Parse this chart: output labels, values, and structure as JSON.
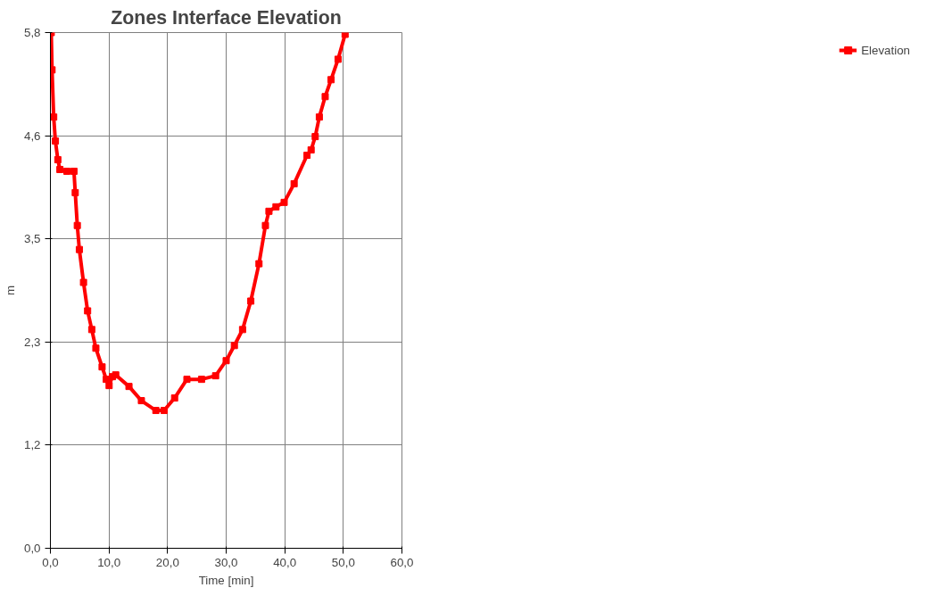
{
  "chart_data": {
    "type": "line",
    "title": "Zones Interface Elevation",
    "xlabel": "Time [min]",
    "ylabel": "m",
    "series": [
      {
        "name": "Elevation",
        "color": "#ff0000",
        "x": [
          0.14,
          0.28,
          0.56,
          0.85,
          1.27,
          1.62,
          2.82,
          4.02,
          4.24,
          4.59,
          4.94,
          5.65,
          6.35,
          7.06,
          7.76,
          8.82,
          9.53,
          10.02,
          10.59,
          11.15,
          13.41,
          15.53,
          18.0,
          19.41,
          21.2,
          23.3,
          25.8,
          28.2,
          30.0,
          31.4,
          32.8,
          34.2,
          35.6,
          36.7,
          37.3,
          38.5,
          39.9,
          41.6,
          43.8,
          44.5,
          45.2,
          45.9,
          46.9,
          47.9,
          49.1,
          50.3
        ],
        "values": [
          5.8,
          5.38,
          4.85,
          4.58,
          4.37,
          4.26,
          4.24,
          4.24,
          4.0,
          3.63,
          3.36,
          2.99,
          2.67,
          2.46,
          2.25,
          2.04,
          1.9,
          1.83,
          1.93,
          1.95,
          1.82,
          1.66,
          1.55,
          1.55,
          1.69,
          1.9,
          1.9,
          1.94,
          2.11,
          2.28,
          2.46,
          2.78,
          3.2,
          3.63,
          3.79,
          3.84,
          3.89,
          4.1,
          4.42,
          4.48,
          4.63,
          4.85,
          5.08,
          5.27,
          5.5,
          5.78
        ]
      }
    ],
    "xlim": [
      0,
      60
    ],
    "ylim": [
      0,
      5.8
    ],
    "xticks": [
      {
        "value": 0,
        "label": "0,0"
      },
      {
        "value": 10,
        "label": "10,0"
      },
      {
        "value": 20,
        "label": "20,0"
      },
      {
        "value": 30,
        "label": "30,0"
      },
      {
        "value": 40,
        "label": "40,0"
      },
      {
        "value": 50,
        "label": "50,0"
      },
      {
        "value": 60,
        "label": "60,0"
      }
    ],
    "yticks": [
      {
        "value": 0,
        "label": "0,0"
      },
      {
        "value": 1.16,
        "label": "1,2"
      },
      {
        "value": 2.32,
        "label": "2,3"
      },
      {
        "value": 3.48,
        "label": "3,5"
      },
      {
        "value": 4.64,
        "label": "4,6"
      },
      {
        "value": 5.8,
        "label": "5,8"
      }
    ],
    "grid": true,
    "legend": "right",
    "marker": "square",
    "line_style": "solid"
  }
}
